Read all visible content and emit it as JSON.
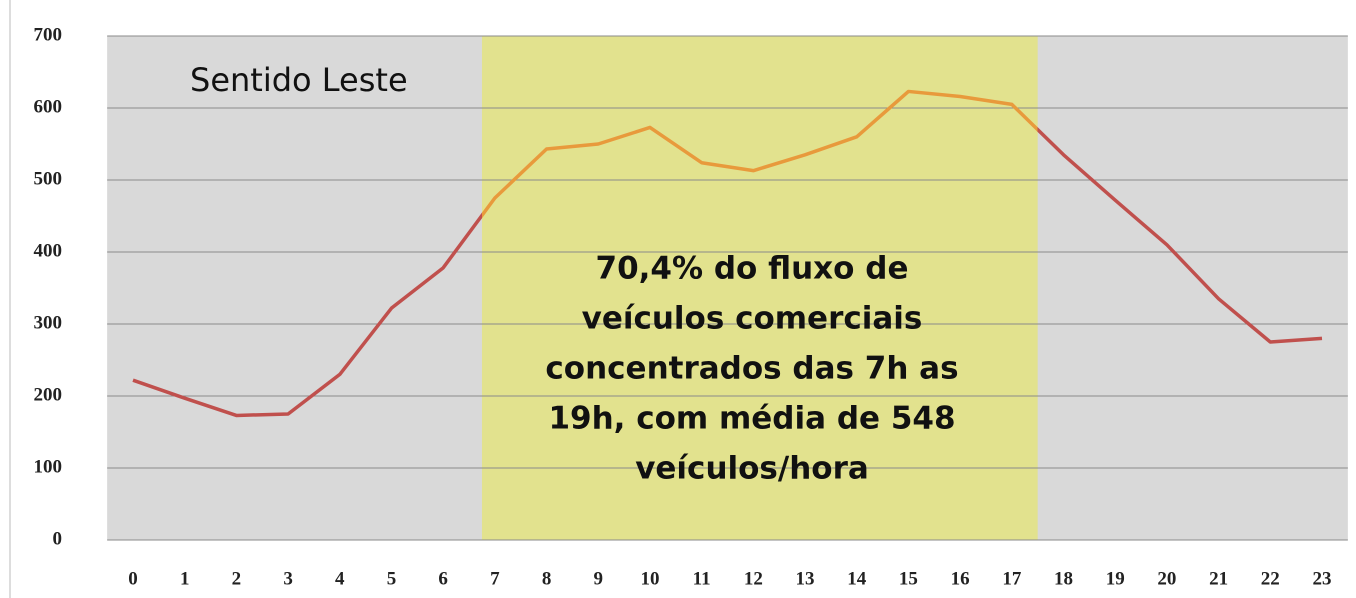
{
  "chart_data": {
    "type": "line",
    "categories": [
      "0",
      "1",
      "2",
      "3",
      "4",
      "5",
      "6",
      "7",
      "8",
      "9",
      "10",
      "11",
      "12",
      "13",
      "14",
      "15",
      "16",
      "17",
      "18",
      "19",
      "20",
      "21",
      "22",
      "23"
    ],
    "series": [
      {
        "values": [
          222,
          197,
          173,
          175,
          230,
          322,
          378,
          475,
          543,
          550,
          573,
          524,
          513,
          535,
          560,
          623,
          616,
          605,
          535,
          472,
          410,
          335,
          275,
          280
        ],
        "color": "#c0504d",
        "highlight_color": "#e89a3c"
      }
    ],
    "ylim": [
      0,
      700
    ],
    "yticks": [
      0,
      100,
      200,
      300,
      400,
      500,
      600,
      700
    ],
    "grid": true,
    "highlight": {
      "from": 7,
      "to": 17,
      "color": "#e2e28e"
    },
    "background": "#d9d9d9",
    "annotations": [
      "Sentido Leste"
    ],
    "note_lines": [
      "70,4% do fluxo de",
      "veículos comerciais",
      "concentrados das 7h as",
      "19h, com média de 548",
      "veículos/hora"
    ]
  }
}
